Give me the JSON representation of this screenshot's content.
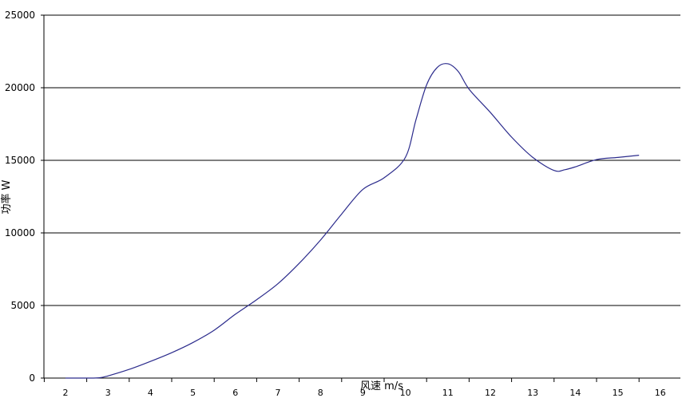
{
  "chart_data": {
    "type": "line",
    "title": "",
    "xlabel": "风速 m/s",
    "ylabel": "功率 W",
    "x_ticks": [
      "2",
      "3",
      "4",
      "5",
      "6",
      "7",
      "8",
      "9",
      "10",
      "11",
      "12",
      "13",
      "14",
      "15",
      "16"
    ],
    "y_ticks": [
      "0",
      "5000",
      "10000",
      "15000",
      "20000",
      "25000"
    ],
    "xlim": [
      2,
      16
    ],
    "ylim": [
      0,
      25000
    ],
    "grid": "horizontal",
    "legend": "none",
    "series": [
      {
        "color": "#2b2b8c",
        "points": [
          [
            2.0,
            0
          ],
          [
            2.5,
            0
          ],
          [
            2.8,
            20
          ],
          [
            3.0,
            150
          ],
          [
            3.5,
            600
          ],
          [
            4.0,
            1150
          ],
          [
            4.5,
            1750
          ],
          [
            5.0,
            2450
          ],
          [
            5.5,
            3300
          ],
          [
            6.0,
            4400
          ],
          [
            6.5,
            5400
          ],
          [
            7.0,
            6500
          ],
          [
            7.5,
            7900
          ],
          [
            8.0,
            9500
          ],
          [
            8.5,
            11300
          ],
          [
            9.0,
            13000
          ],
          [
            9.5,
            13800
          ],
          [
            10.0,
            15200
          ],
          [
            10.25,
            17800
          ],
          [
            10.5,
            20200
          ],
          [
            10.75,
            21400
          ],
          [
            11.0,
            21650
          ],
          [
            11.25,
            21100
          ],
          [
            11.5,
            19900
          ],
          [
            12.0,
            18300
          ],
          [
            12.5,
            16600
          ],
          [
            13.0,
            15200
          ],
          [
            13.5,
            14300
          ],
          [
            13.75,
            14350
          ],
          [
            14.0,
            14550
          ],
          [
            14.5,
            15050
          ],
          [
            15.0,
            15200
          ],
          [
            15.5,
            15350
          ]
        ]
      }
    ]
  }
}
